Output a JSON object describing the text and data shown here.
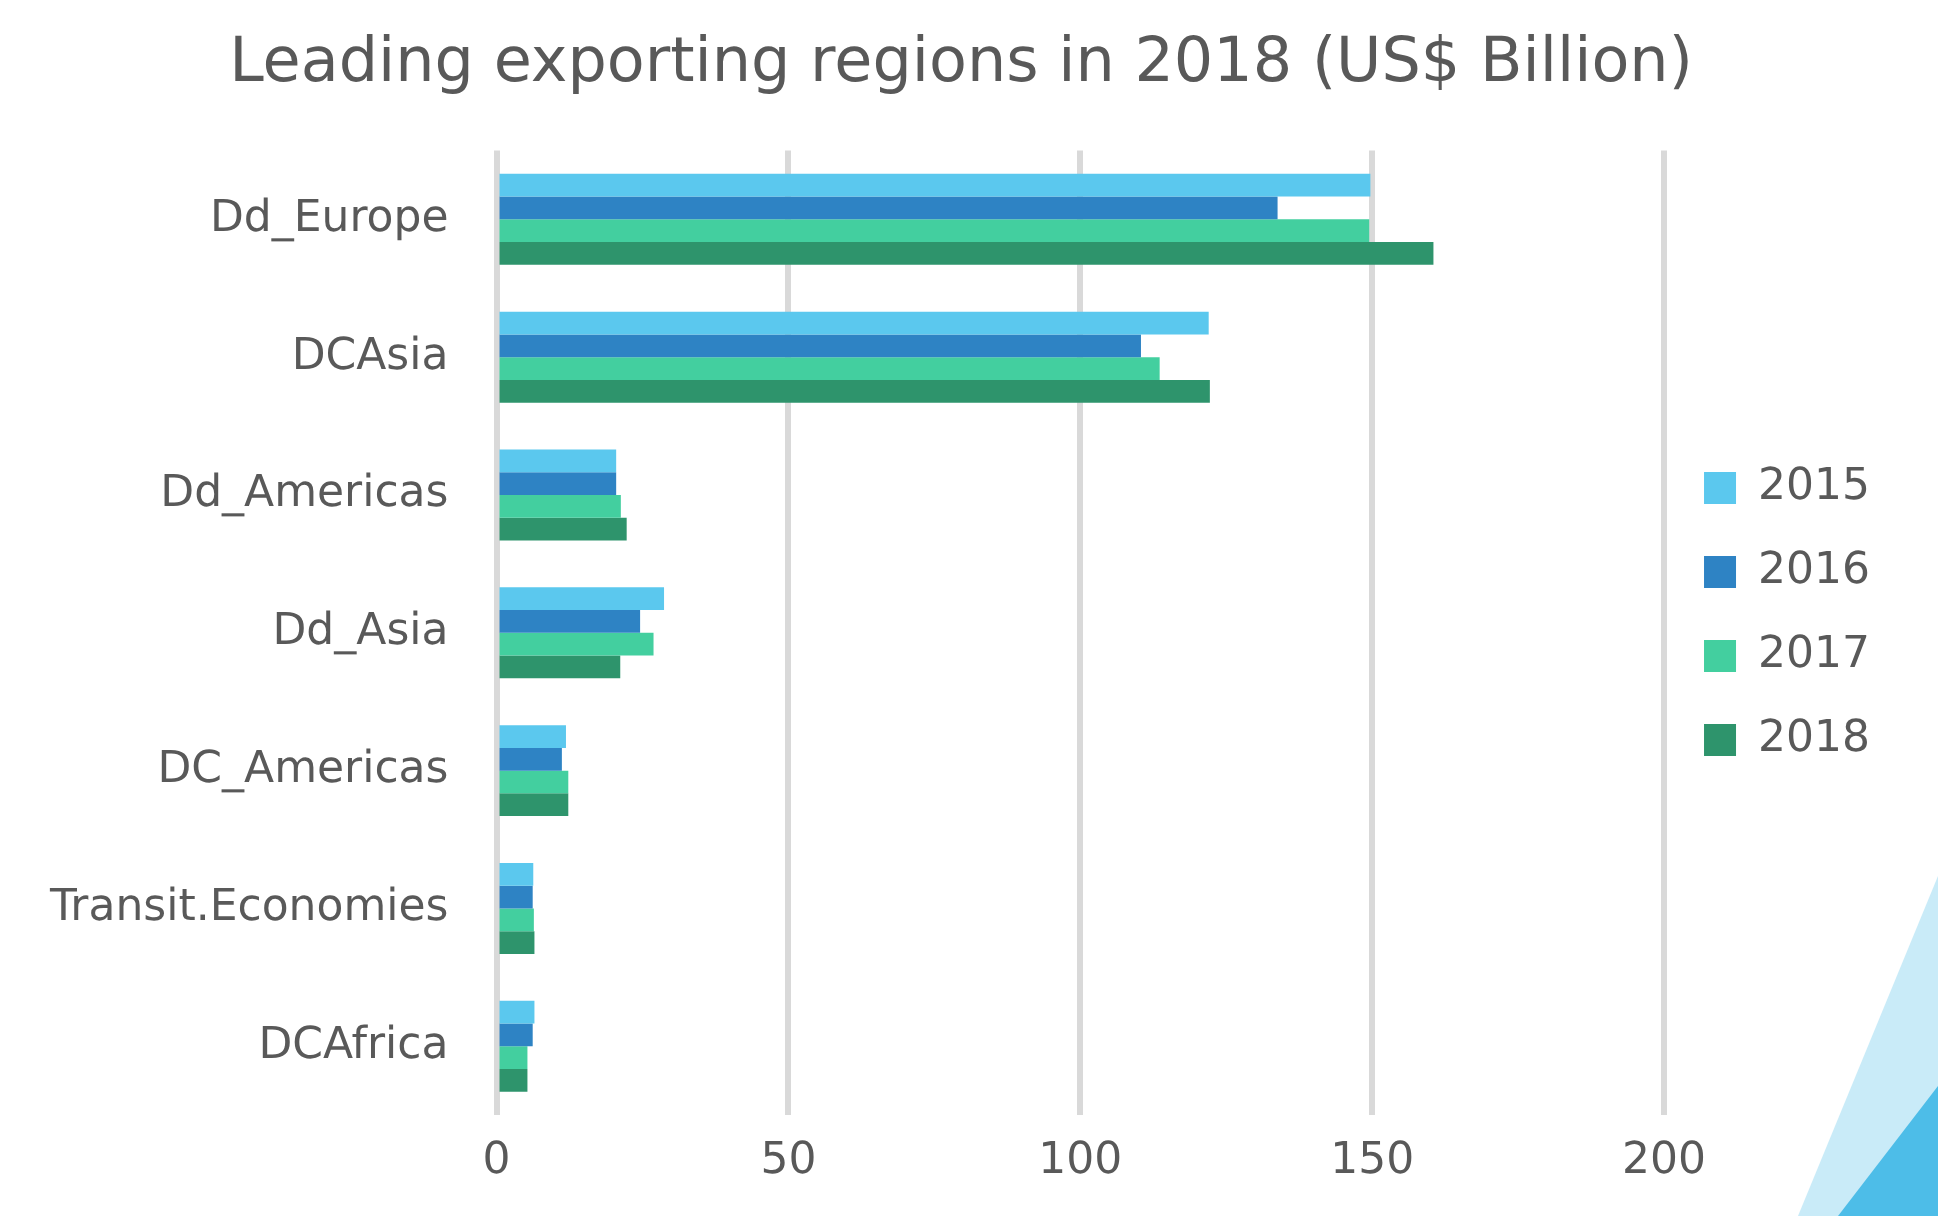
{
  "chart_data": {
    "type": "bar",
    "title": "Leading exporting regions in 2018 (US$ Billion)",
    "orientation": "horizontal",
    "categories": [
      "Dd_Europe",
      "DCAsia",
      "Dd_Americas",
      "Dd_Asia",
      "DC_Americas",
      "Transit.Economies",
      "DCAfrica"
    ],
    "series": [
      {
        "name": "2015",
        "color": "#5bc8ee",
        "values": [
          149.7,
          122,
          20.5,
          28.7,
          11.9,
          6.3,
          6.5
        ]
      },
      {
        "name": "2016",
        "color": "#2e83c4",
        "values": [
          133.8,
          110.4,
          20.5,
          24.6,
          11.2,
          6.2,
          6.2
        ]
      },
      {
        "name": "2017",
        "color": "#43cf9f",
        "values": [
          149.5,
          113.6,
          21.3,
          26.9,
          12.3,
          6.4,
          5.3
        ]
      },
      {
        "name": "2018",
        "color": "#2e946c",
        "values": [
          160.5,
          122.2,
          22.3,
          21.2,
          12.3,
          6.5,
          5.3
        ]
      }
    ],
    "xlim": [
      0,
      200
    ],
    "xticks": [
      0,
      50,
      100,
      150,
      200
    ],
    "grid": "x",
    "legend": "right"
  }
}
